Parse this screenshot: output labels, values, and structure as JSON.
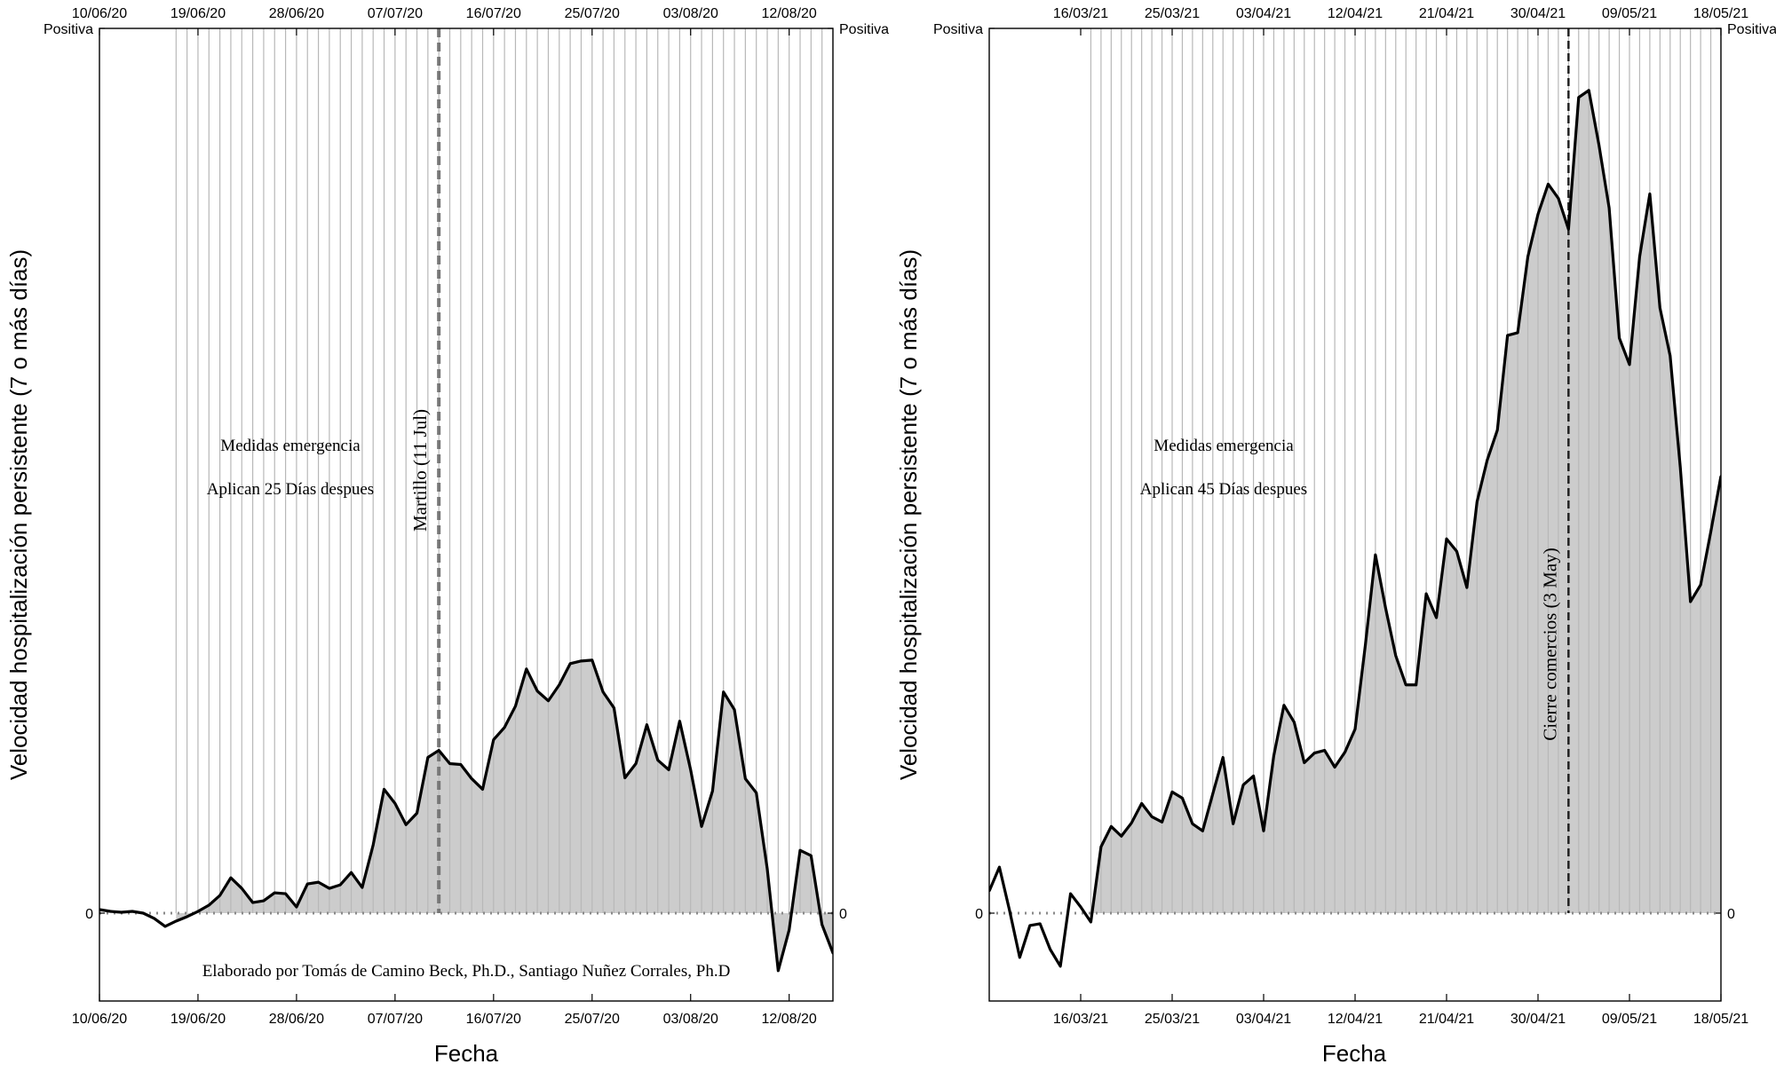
{
  "chart_data": [
    {
      "type": "area",
      "title": "",
      "xlabel": "Fecha",
      "ylabel": "Velocidad hospitalización persistente (7 o más días)",
      "x_start": "10/06/20",
      "x_end": "16/08/20",
      "ylim": [
        -0.1,
        1.0
      ],
      "y_ticks": [
        {
          "value": 0,
          "label": "0"
        },
        {
          "value": 1.0,
          "label": "Positiva"
        }
      ],
      "bottom_ticks": [
        "10/06/20",
        "19/06/20",
        "28/06/20",
        "07/07/20",
        "16/07/20",
        "25/07/20",
        "03/08/20",
        "12/08/20"
      ],
      "top_ticks": [
        "10/06/20",
        "19/06/20",
        "28/06/20",
        "07/07/20",
        "16/07/20",
        "25/07/20",
        "03/08/20",
        "12/08/20"
      ],
      "shading_start": "17/06/20",
      "grid": "vertical daily lines from 17/06/20",
      "zero_line": "dotted",
      "vertical_marker": {
        "date": "11/07/20",
        "label": "Martillo (11 Jul)",
        "style": "dashed"
      },
      "annotations": [
        "Medidas emergencia",
        "Aplican 25 Días despues"
      ],
      "credit": "Elaborado por Tomás de Camino Beck, Ph.D., Santiago Nuñez Corrales, Ph.D",
      "series": [
        {
          "values": [
            0.004,
            0.002,
            0.001,
            0.002,
            0.0,
            -0.006,
            -0.015,
            -0.009,
            -0.004,
            0.002,
            0.009,
            0.02,
            0.04,
            0.028,
            0.012,
            0.014,
            0.023,
            0.022,
            0.007,
            0.033,
            0.035,
            0.028,
            0.032,
            0.046,
            0.029,
            0.077,
            0.14,
            0.124,
            0.1,
            0.113,
            0.176,
            0.184,
            0.169,
            0.168,
            0.152,
            0.14,
            0.196,
            0.21,
            0.234,
            0.276,
            0.251,
            0.24,
            0.258,
            0.282,
            0.285,
            0.286,
            0.25,
            0.232,
            0.153,
            0.169,
            0.213,
            0.173,
            0.162,
            0.217,
            0.162,
            0.098,
            0.138,
            0.25,
            0.23,
            0.152,
            0.136,
            0.05,
            -0.065,
            -0.019,
            0.071,
            0.065,
            -0.013,
            -0.045,
            -0.014
          ]
        }
      ]
    },
    {
      "type": "area",
      "title": "",
      "xlabel": "Fecha",
      "ylabel": "Velocidad hospitalización persistente (7 o más días)",
      "x_start": "07/03/21",
      "x_end": "18/05/21",
      "ylim": [
        -0.1,
        1.0
      ],
      "y_ticks": [
        {
          "value": 0,
          "label": "0"
        },
        {
          "value": 1.0,
          "label": "Positiva"
        }
      ],
      "bottom_ticks": [
        "16/03/21",
        "25/03/21",
        "03/04/21",
        "12/04/21",
        "21/04/21",
        "30/04/21",
        "09/05/21",
        "18/05/21"
      ],
      "top_ticks": [
        "16/03/21",
        "25/03/21",
        "03/04/21",
        "12/04/21",
        "21/04/21",
        "30/04/21",
        "09/05/21",
        "18/05/21"
      ],
      "shading_start": "17/03/21",
      "grid": "vertical daily lines from 17/03/21",
      "zero_line": "dotted",
      "vertical_marker": {
        "date": "03/05/21",
        "label": "Cierre comercios (3 May)",
        "style": "dashed"
      },
      "annotations": [
        "Medidas emergencia",
        "Aplican 45 Días despues"
      ],
      "series": [
        {
          "values": [
            0.025,
            0.052,
            0.003,
            -0.05,
            -0.014,
            -0.012,
            -0.041,
            -0.06,
            0.022,
            0.007,
            -0.01,
            0.075,
            0.098,
            0.087,
            0.102,
            0.124,
            0.109,
            0.103,
            0.137,
            0.13,
            0.101,
            0.093,
            0.135,
            0.176,
            0.101,
            0.145,
            0.155,
            0.093,
            0.178,
            0.235,
            0.216,
            0.17,
            0.181,
            0.184,
            0.165,
            0.182,
            0.208,
            0.302,
            0.405,
            0.345,
            0.291,
            0.258,
            0.258,
            0.361,
            0.334,
            0.423,
            0.409,
            0.368,
            0.465,
            0.512,
            0.546,
            0.653,
            0.656,
            0.742,
            0.79,
            0.824,
            0.808,
            0.773,
            0.922,
            0.93,
            0.868,
            0.797,
            0.65,
            0.62,
            0.742,
            0.813,
            0.684,
            0.63,
            0.504,
            0.352,
            0.371,
            0.431,
            0.494
          ]
        }
      ]
    }
  ]
}
